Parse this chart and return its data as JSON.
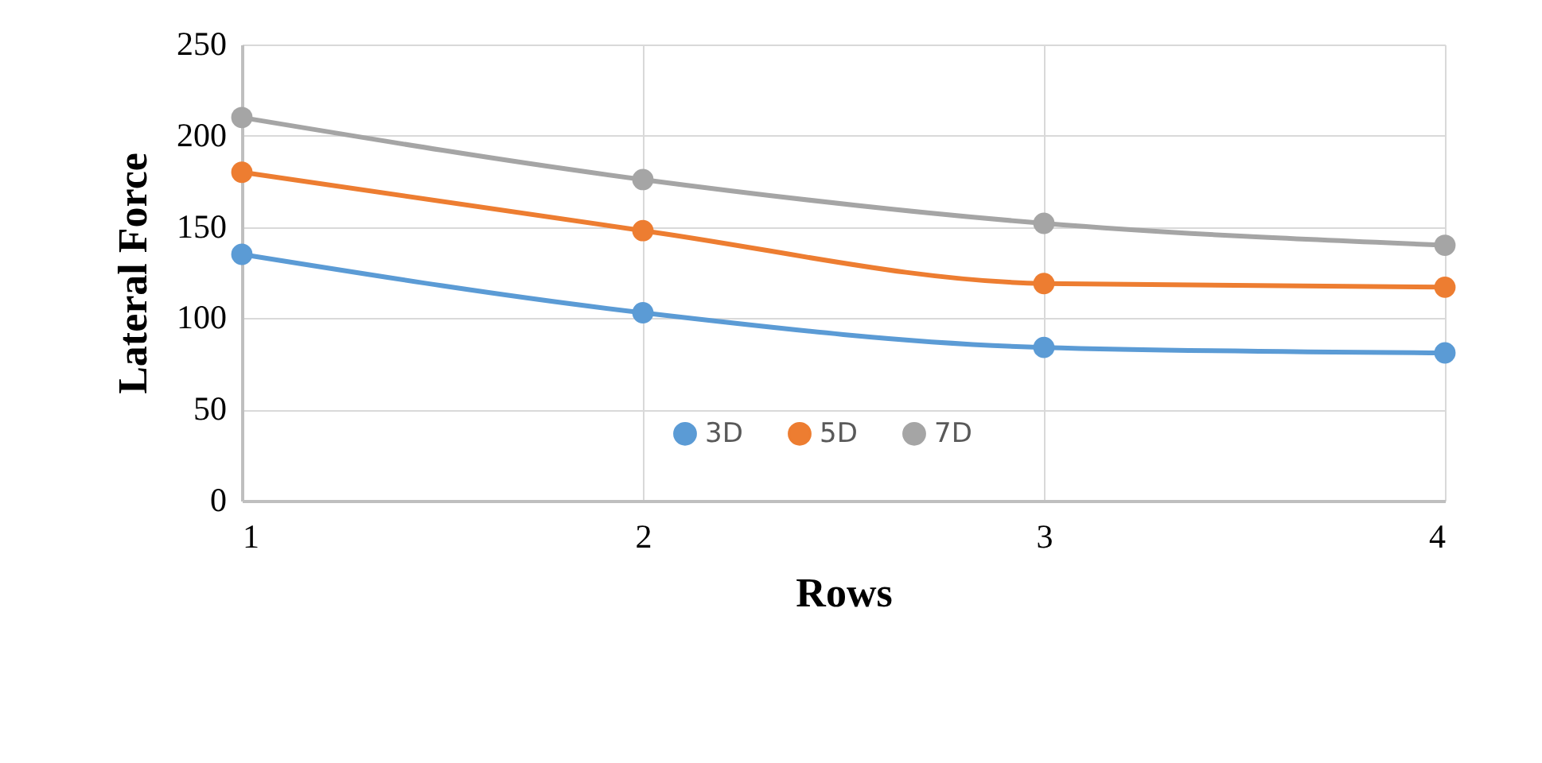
{
  "chart_data": {
    "type": "line",
    "xlabel": "Rows",
    "ylabel": "Lateral Force",
    "x": [
      1,
      2,
      3,
      4
    ],
    "xlim": [
      1,
      4
    ],
    "xticks": [
      1,
      2,
      3,
      4
    ],
    "ylim": [
      0,
      250
    ],
    "yticks": [
      0,
      50,
      100,
      150,
      200,
      250
    ],
    "grid": true,
    "legend": "bottom",
    "marker": "circle",
    "line_style": "solid",
    "series": [
      {
        "name": "3D",
        "color": "#5b9bd5",
        "values": [
          135,
          103,
          84,
          81
        ]
      },
      {
        "name": "5D",
        "color": "#ed7d31",
        "values": [
          180,
          148,
          119,
          117
        ]
      },
      {
        "name": "7D",
        "color": "#a5a5a5",
        "values": [
          210,
          176,
          152,
          140
        ]
      }
    ]
  }
}
